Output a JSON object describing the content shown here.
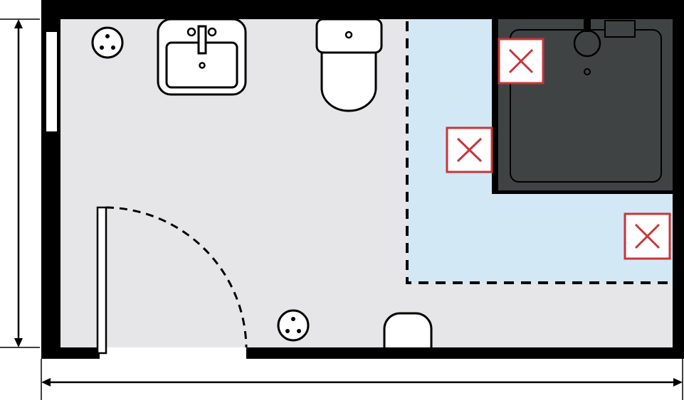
{
  "floor_plan": {
    "kind": "bathroom-floor-plan",
    "colors": {
      "wall": "#000000",
      "floor": "#e6e6e8",
      "wet_zone": "#d3e8f5",
      "shower_tray": "#3f4344",
      "fixture_fill": "#ffffff",
      "prohibited_mark": "#c8353a"
    },
    "fixtures": [
      "window",
      "floor-socket",
      "washbasin",
      "toilet",
      "shower-tray",
      "door",
      "radiator"
    ],
    "zones": [
      "dry-floor",
      "wet-zone"
    ],
    "prohibited_marks_count": 3,
    "dimension_lines": [
      "height",
      "width"
    ]
  }
}
